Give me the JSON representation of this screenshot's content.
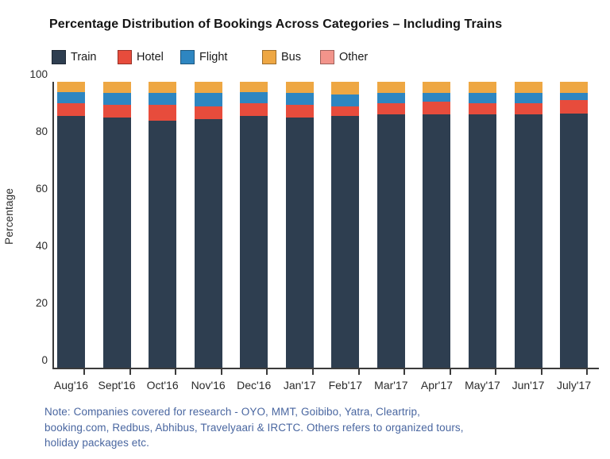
{
  "title": "Percentage Distribution of Bookings Across Categories – Including Trains",
  "y_axis": {
    "label": "Percentage",
    "ticks": [
      0,
      20,
      40,
      60,
      80,
      100
    ]
  },
  "note": {
    "lines": [
      "Note: Companies covered for research - OYO, MMT, Goibibo, Yatra, Cleartrip,",
      "booking.com, Redbus, Abhibus, Travelyaari & IRCTC. Others refers to organized tours,",
      "holiday packages etc."
    ]
  },
  "legend": [
    {
      "label": "Train",
      "color": "#2E3E50"
    },
    {
      "label": "Hotel",
      "color": "#E74C3C"
    },
    {
      "label": "Flight",
      "color": "#2E86C1"
    },
    {
      "label": "Bus",
      "color": "#EEA743"
    },
    {
      "label": "Other",
      "color": "#F2948B"
    }
  ],
  "chart_data": {
    "type": "bar",
    "stacked": true,
    "title": "Percentage Distribution of Bookings Across Categories – Including Trains",
    "xlabel": "",
    "ylabel": "Percentage",
    "ylim": [
      0,
      100
    ],
    "yticks": [
      0,
      20,
      40,
      60,
      80,
      100
    ],
    "grid": false,
    "legend_position": "top-left",
    "categories": [
      "Aug'16",
      "Sept'16",
      "Oct'16",
      "Nov'16",
      "Dec'16",
      "Jan'17",
      "Feb'17",
      "Mar'17",
      "Apr'17",
      "May'17",
      "Jun'17",
      "July'17"
    ],
    "series": [
      {
        "name": "Train",
        "color": "#2E3E50",
        "values": [
          88.0,
          87.5,
          86.5,
          87.0,
          88.0,
          87.5,
          88.0,
          88.5,
          88.5,
          88.5,
          88.5,
          89.0
        ]
      },
      {
        "name": "Hotel",
        "color": "#E74C3C",
        "values": [
          4.5,
          4.5,
          5.5,
          4.5,
          4.5,
          4.5,
          3.5,
          4.0,
          4.5,
          4.0,
          4.0,
          4.5
        ]
      },
      {
        "name": "Flight",
        "color": "#2E86C1",
        "values": [
          4.0,
          4.0,
          4.0,
          4.5,
          4.0,
          4.0,
          4.0,
          3.5,
          3.0,
          3.5,
          3.5,
          2.5
        ]
      },
      {
        "name": "Bus",
        "color": "#EEA743",
        "values": [
          3.5,
          4.0,
          4.0,
          4.0,
          3.5,
          4.0,
          4.5,
          4.0,
          4.0,
          4.0,
          4.0,
          4.0
        ]
      },
      {
        "name": "Other",
        "color": "#F2948B",
        "values": [
          0,
          0,
          0,
          0,
          0,
          0,
          0,
          0,
          0,
          0,
          0,
          0
        ]
      }
    ]
  }
}
